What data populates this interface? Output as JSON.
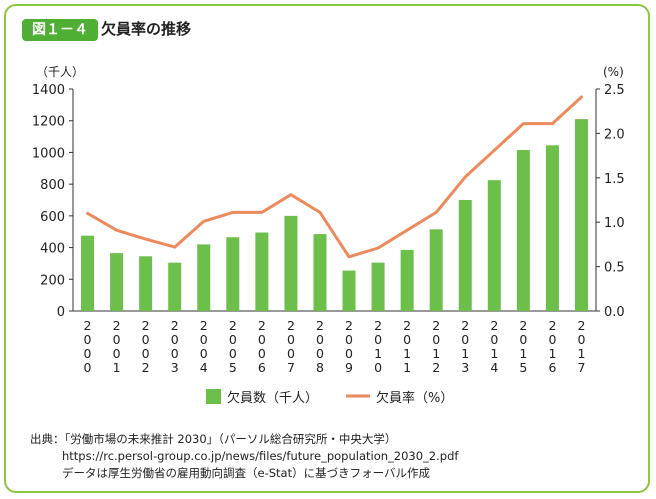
{
  "header": {
    "badge": "図１－４",
    "title": "欠員率の推移"
  },
  "chart_data": {
    "type": "bar+line",
    "categories": [
      "2000",
      "2001",
      "2002",
      "2003",
      "2004",
      "2005",
      "2006",
      "2007",
      "2008",
      "2009",
      "2010",
      "2011",
      "2012",
      "2013",
      "2014",
      "2015",
      "2016",
      "2017"
    ],
    "series": [
      {
        "name": "欠員数（千人）",
        "type": "bar",
        "axis": "left",
        "color": "#6dbf4b",
        "values": [
          475,
          365,
          345,
          305,
          420,
          465,
          495,
          600,
          485,
          255,
          305,
          385,
          515,
          700,
          825,
          1015,
          1045,
          1210
        ]
      },
      {
        "name": "欠員率（%）",
        "type": "line",
        "axis": "right",
        "color": "#ec8a5c",
        "values": [
          1.1,
          0.91,
          0.81,
          0.72,
          1.01,
          1.11,
          1.11,
          1.31,
          1.11,
          0.61,
          0.71,
          0.91,
          1.11,
          1.51,
          1.81,
          2.11,
          2.11,
          2.41
        ]
      }
    ],
    "left_axis": {
      "unit": "（千人）",
      "min": 0,
      "max": 1400,
      "ticks": [
        "0",
        "200",
        "400",
        "600",
        "800",
        "1000",
        "1200",
        "1400"
      ]
    },
    "right_axis": {
      "unit": "(%)",
      "min": 0,
      "max": 2.5,
      "ticks": [
        "0.0",
        "0.5",
        "1.0",
        "1.5",
        "2.0",
        "2.5"
      ]
    },
    "legend": {
      "placement": "bottom"
    },
    "grid": false
  },
  "source": {
    "line1": "出典：「労働市場の未来推計 2030」（パーソル総合研究所・中央大学）",
    "line2": "https://rc.persol-group.co.jp/news/files/future_population_2030_2.pdf",
    "line3": "データは厚生労働省の雇用動向調査（e-Stat）に基づきフォーバル作成"
  }
}
